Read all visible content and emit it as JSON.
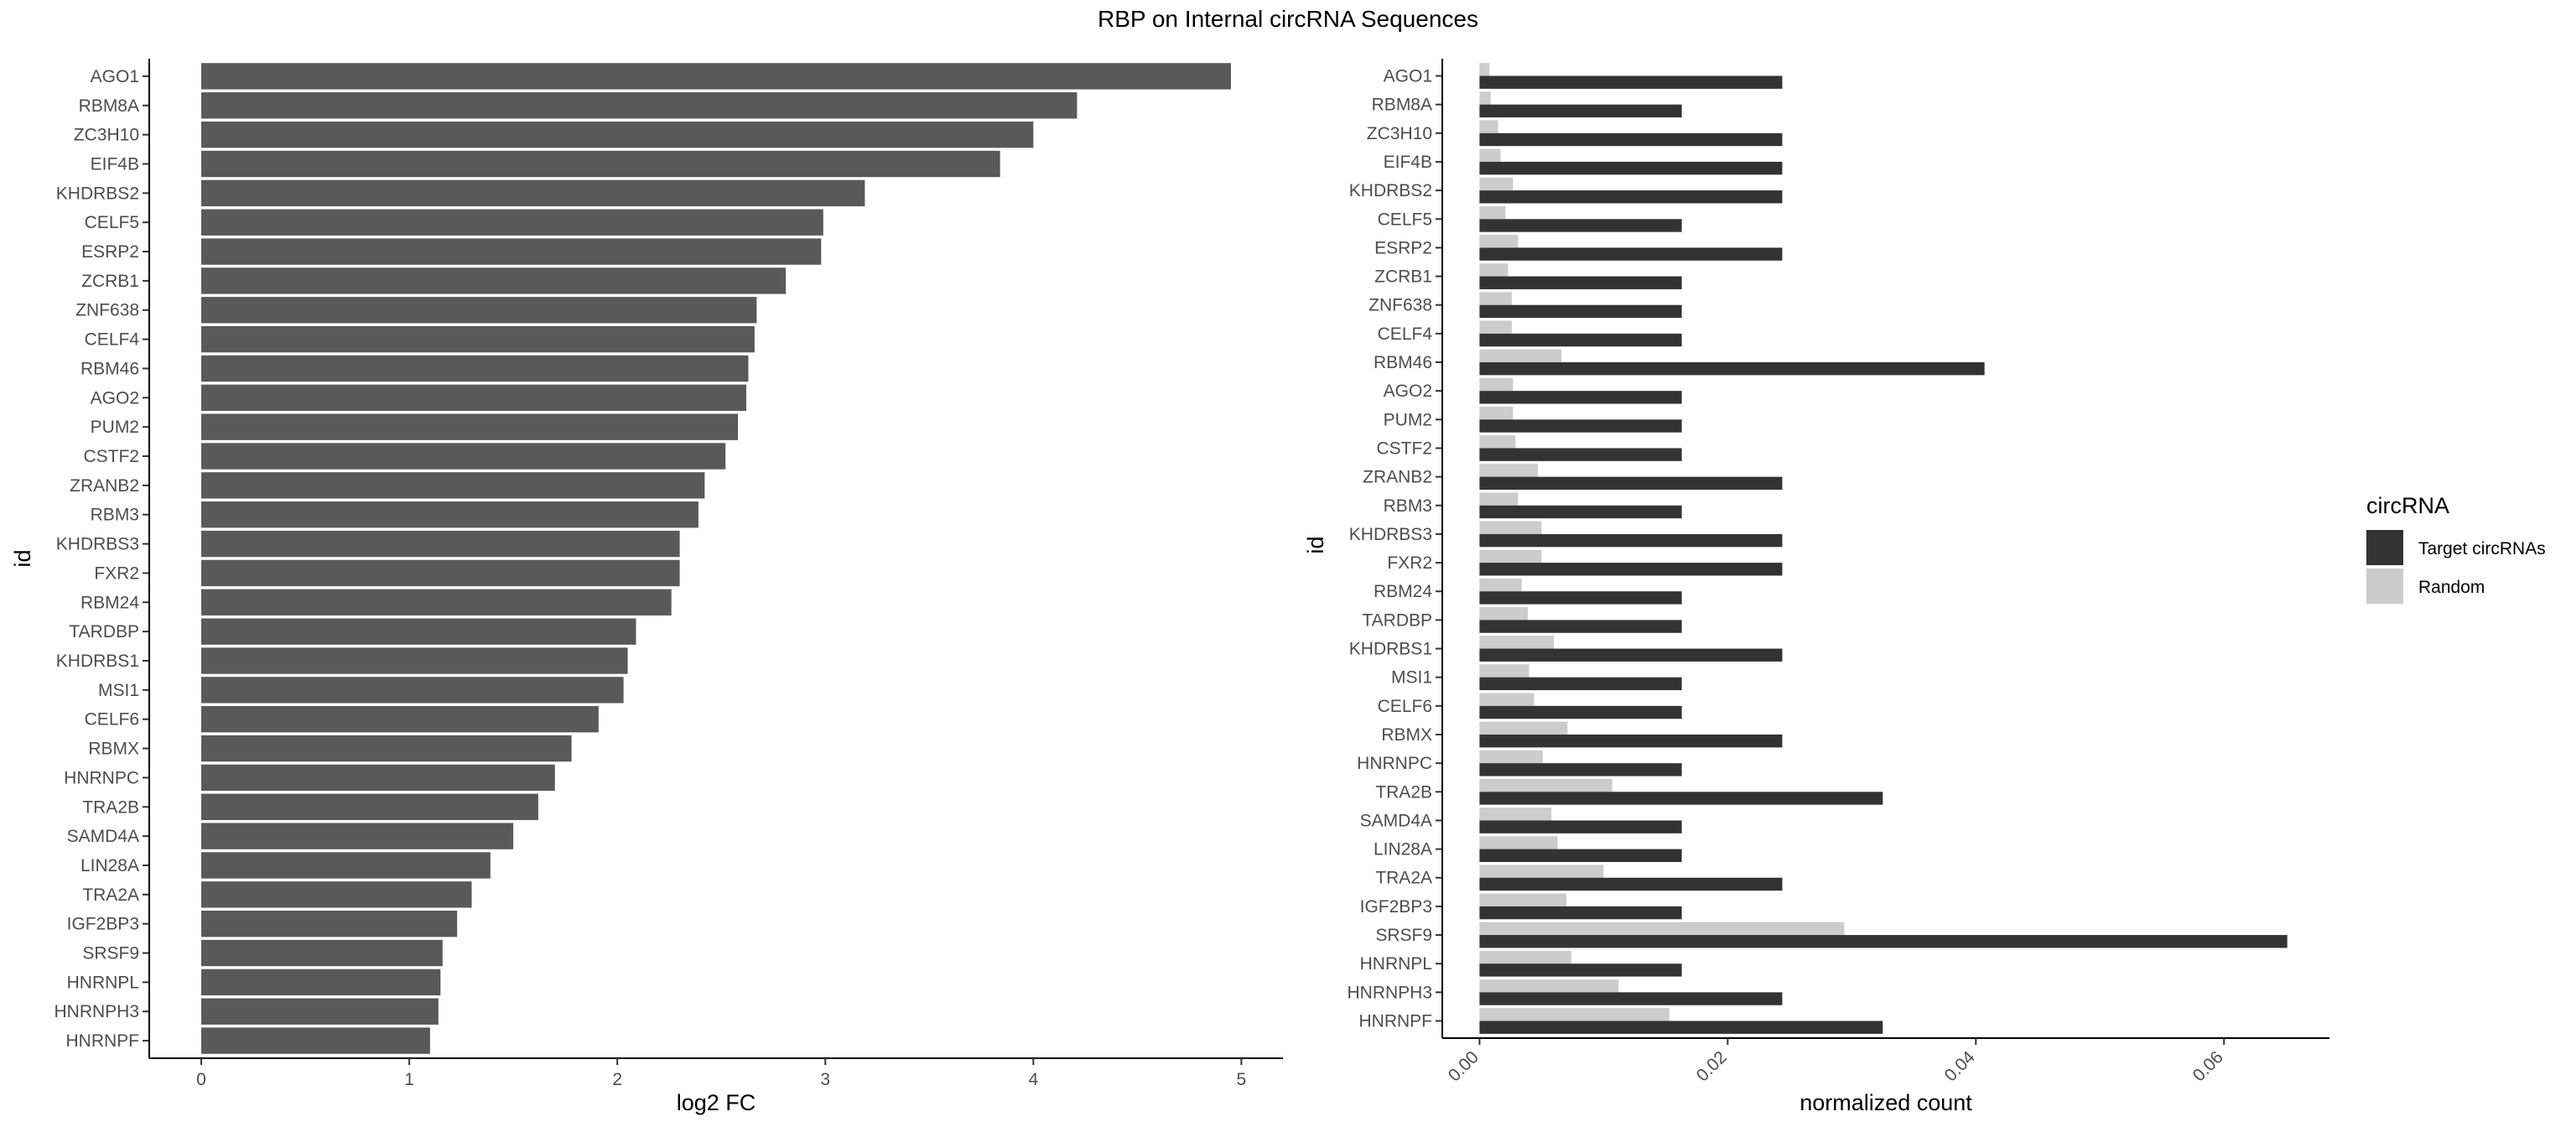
{
  "figure": {
    "title": "RBP on Internal circRNA Sequences"
  },
  "chart_data": [
    {
      "type": "bar",
      "orientation": "horizontal",
      "xlabel": "log2 FC",
      "ylabel": "id",
      "xlim": [
        -0.25,
        5.2
      ],
      "xticks": [
        "0",
        "1",
        "2",
        "3",
        "4",
        "5"
      ],
      "bar_color": "#595959",
      "categories": [
        "AGO1",
        "RBM8A",
        "ZC3H10",
        "EIF4B",
        "KHDRBS2",
        "CELF5",
        "ESRP2",
        "ZCRB1",
        "ZNF638",
        "CELF4",
        "RBM46",
        "AGO2",
        "PUM2",
        "CSTF2",
        "ZRANB2",
        "RBM3",
        "KHDRBS3",
        "FXR2",
        "RBM24",
        "TARDBP",
        "KHDRBS1",
        "MSI1",
        "CELF6",
        "RBMX",
        "HNRNPC",
        "TRA2B",
        "SAMD4A",
        "LIN28A",
        "TRA2A",
        "IGF2BP3",
        "SRSF9",
        "HNRNPL",
        "HNRNPH3",
        "HNRNPF"
      ],
      "values": [
        4.95,
        4.21,
        4.0,
        3.84,
        3.19,
        2.99,
        2.98,
        2.81,
        2.67,
        2.66,
        2.63,
        2.62,
        2.58,
        2.52,
        2.42,
        2.39,
        2.3,
        2.3,
        2.26,
        2.09,
        2.05,
        2.03,
        1.91,
        1.78,
        1.7,
        1.62,
        1.5,
        1.39,
        1.3,
        1.23,
        1.16,
        1.15,
        1.14,
        1.1
      ],
      "grid": false
    },
    {
      "type": "bar",
      "orientation": "horizontal",
      "xlabel": "normalized count",
      "ylabel": "id",
      "xlim": [
        -0.003,
        0.0685
      ],
      "xticks": [
        "0.00",
        "0.02",
        "0.04",
        "0.06"
      ],
      "grid": false,
      "legend": {
        "title": "circRNA",
        "placement": "right"
      },
      "categories": [
        "AGO1",
        "RBM8A",
        "ZC3H10",
        "EIF4B",
        "KHDRBS2",
        "CELF5",
        "ESRP2",
        "ZCRB1",
        "ZNF638",
        "CELF4",
        "RBM46",
        "AGO2",
        "PUM2",
        "CSTF2",
        "ZRANB2",
        "RBM3",
        "KHDRBS3",
        "FXR2",
        "RBM24",
        "TARDBP",
        "KHDRBS1",
        "MSI1",
        "CELF6",
        "RBMX",
        "HNRNPC",
        "TRA2B",
        "SAMD4A",
        "LIN28A",
        "TRA2A",
        "IGF2BP3",
        "SRSF9",
        "HNRNPL",
        "HNRNPH3",
        "HNRNPF"
      ],
      "series": [
        {
          "name": "Target circRNAs",
          "color": "#333333",
          "values": [
            0.0244,
            0.0163,
            0.0244,
            0.0244,
            0.0244,
            0.0163,
            0.0244,
            0.0163,
            0.0163,
            0.0163,
            0.0407,
            0.0163,
            0.0163,
            0.0163,
            0.0244,
            0.0163,
            0.0244,
            0.0244,
            0.0163,
            0.0163,
            0.0244,
            0.0163,
            0.0163,
            0.0244,
            0.0163,
            0.0325,
            0.0163,
            0.0163,
            0.0244,
            0.0163,
            0.0651,
            0.0163,
            0.0244,
            0.0325
          ]
        },
        {
          "name": "Random",
          "color": "#cccccc",
          "values": [
            0.0008,
            0.0009,
            0.0015,
            0.0017,
            0.0027,
            0.0021,
            0.0031,
            0.0023,
            0.0026,
            0.0026,
            0.0066,
            0.0027,
            0.0027,
            0.0029,
            0.0047,
            0.0031,
            0.005,
            0.005,
            0.0034,
            0.0039,
            0.006,
            0.004,
            0.0044,
            0.0071,
            0.0051,
            0.0107,
            0.0058,
            0.0063,
            0.01,
            0.007,
            0.0294,
            0.0074,
            0.0112,
            0.0153
          ]
        }
      ]
    }
  ]
}
